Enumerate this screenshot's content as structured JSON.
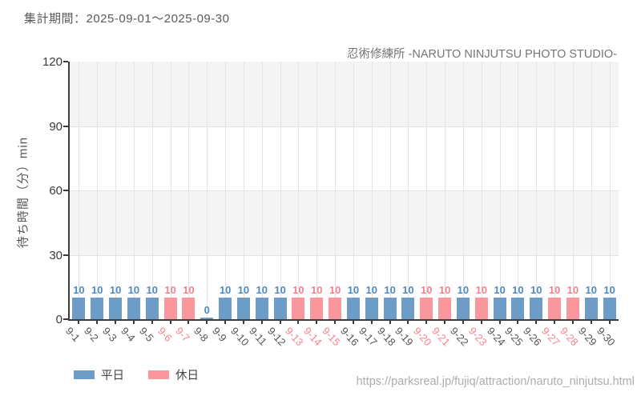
{
  "header": {
    "period_label": "集計期間：2025-09-01～2025-09-30"
  },
  "chart": {
    "title": "忍術修練所 -NARUTO NINJUTSU PHOTO STUDIO-",
    "y_axis_label": "待ち時間（分）min"
  },
  "legend": [
    {
      "label": "平日",
      "color": "#6d9dc6"
    },
    {
      "label": "休日",
      "color": "#f9979d"
    }
  ],
  "footer": {
    "url": "https://parksreal.jp/fujiq/attraction/naruto_ninjutsu.html"
  },
  "chart_data": {
    "type": "bar",
    "title": "忍術修練所 -NARUTO NINJUTSU PHOTO STUDIO-",
    "xlabel": "",
    "ylabel": "待ち時間（分）min",
    "ylim": [
      0,
      120
    ],
    "yticks": [
      0,
      30,
      60,
      90,
      120
    ],
    "grid": true,
    "legend_position": "bottom-left",
    "categories": [
      "9-1",
      "9-2",
      "9-3",
      "9-4",
      "9-5",
      "9-6",
      "9-7",
      "9-8",
      "9-9",
      "9-10",
      "9-11",
      "9-12",
      "9-13",
      "9-14",
      "9-15",
      "9-16",
      "9-17",
      "9-18",
      "9-19",
      "9-20",
      "9-21",
      "9-22",
      "9-23",
      "9-24",
      "9-25",
      "9-26",
      "9-27",
      "9-28",
      "9-29",
      "9-30"
    ],
    "values": [
      10,
      10,
      10,
      10,
      10,
      10,
      10,
      0,
      10,
      10,
      10,
      10,
      10,
      10,
      10,
      10,
      10,
      10,
      10,
      10,
      10,
      10,
      10,
      10,
      10,
      10,
      10,
      10,
      10,
      10
    ],
    "day_types": [
      "weekday",
      "weekday",
      "weekday",
      "weekday",
      "weekday",
      "holiday",
      "holiday",
      "weekday",
      "weekday",
      "weekday",
      "weekday",
      "weekday",
      "holiday",
      "holiday",
      "holiday",
      "weekday",
      "weekday",
      "weekday",
      "weekday",
      "holiday",
      "holiday",
      "weekday",
      "holiday",
      "weekday",
      "weekday",
      "weekday",
      "holiday",
      "holiday",
      "weekday",
      "weekday"
    ],
    "colors": {
      "weekday_bar": "#6d9dc6",
      "holiday_bar": "#f9979d",
      "weekday_value_label": "#4d8cc3",
      "holiday_value_label": "#f8808d",
      "weekday_tick_label": "#555555",
      "holiday_tick_label": "#f8828d",
      "band_fill": "#f4f4f4",
      "axis": "#3c3c3c"
    }
  }
}
